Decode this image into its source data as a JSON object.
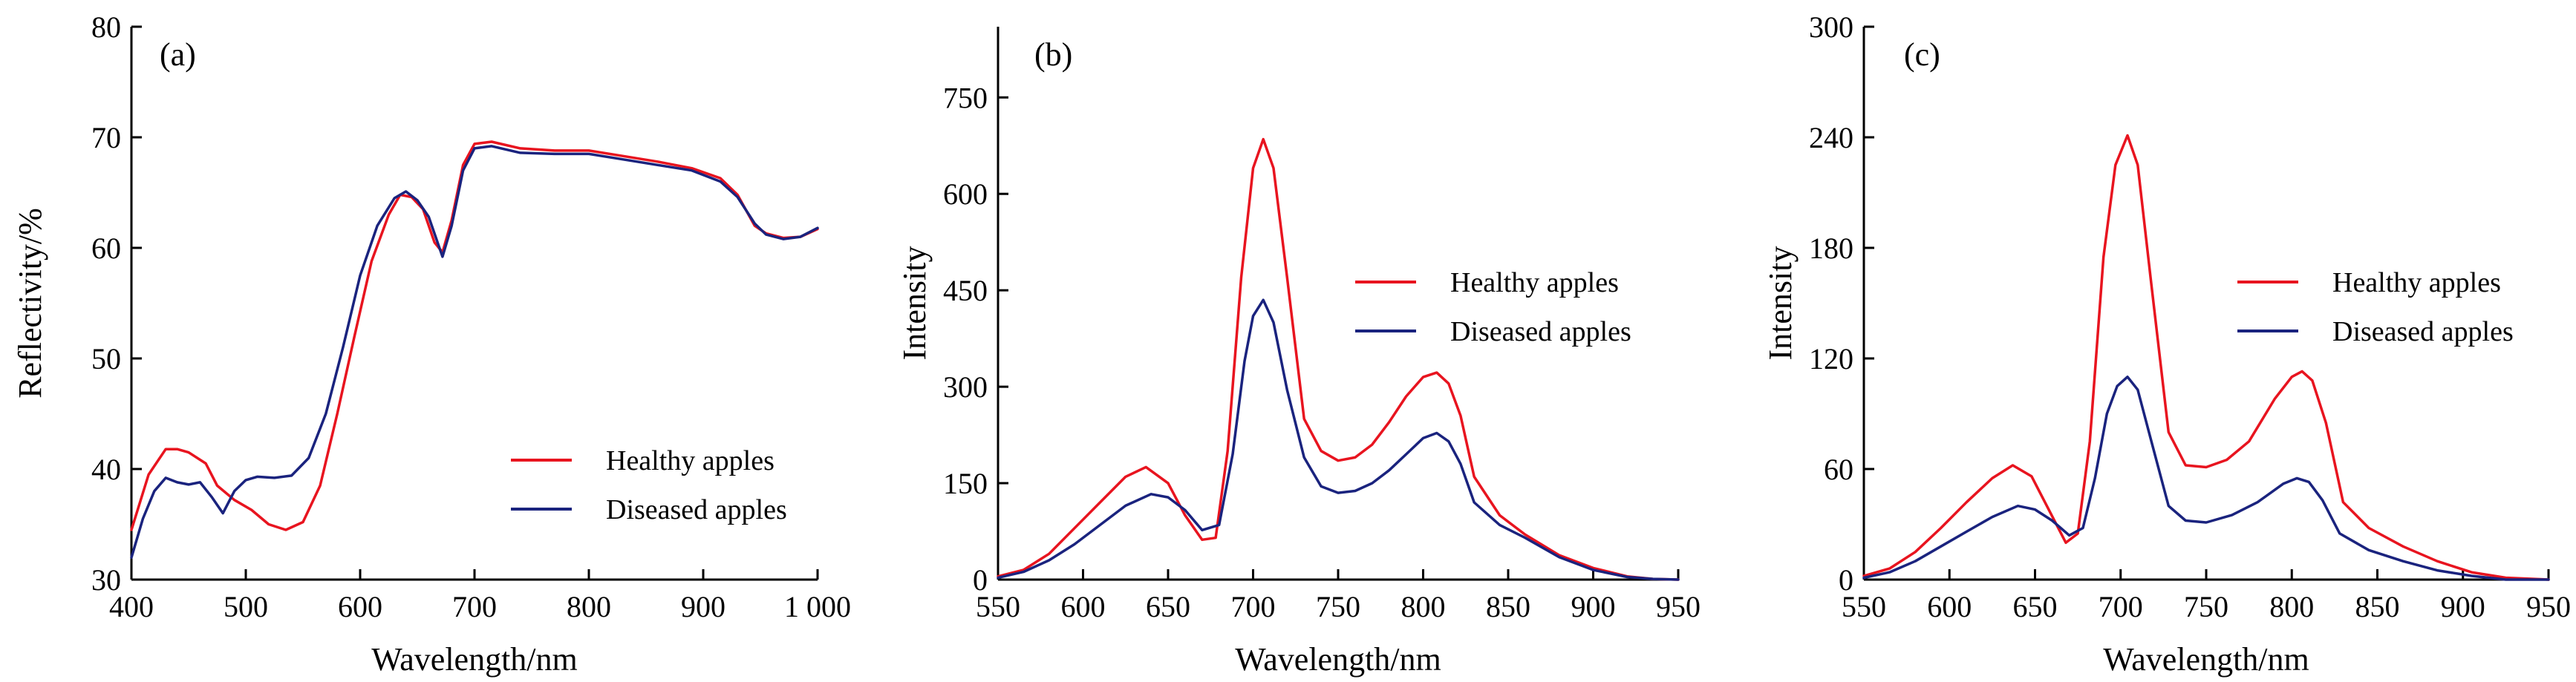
{
  "colors": {
    "healthy": "#e8141f",
    "diseased": "#1a237e",
    "axis": "#000000"
  },
  "chart_data": [
    {
      "type": "line",
      "panel_label": "(a)",
      "xlabel": "Wavelength/nm",
      "ylabel": "Reflectivity/%",
      "xlim": [
        400,
        1000
      ],
      "ylim": [
        30,
        80
      ],
      "xticks": [
        400,
        500,
        600,
        700,
        800,
        900,
        1000
      ],
      "xtick_labels": [
        "400",
        "500",
        "600",
        "700",
        "800",
        "900",
        "1 000"
      ],
      "yticks": [
        30,
        40,
        50,
        60,
        70,
        80
      ],
      "ytick_labels": [
        "30",
        "40",
        "50",
        "60",
        "70",
        "80"
      ],
      "grid": false,
      "legend_position": "lower-right",
      "series": [
        {
          "name": "Healthy apples",
          "color": "#e8141f",
          "x": [
            400,
            415,
            430,
            440,
            450,
            465,
            475,
            490,
            505,
            520,
            535,
            550,
            565,
            580,
            595,
            610,
            625,
            635,
            645,
            655,
            665,
            672,
            680,
            690,
            700,
            715,
            740,
            770,
            800,
            830,
            860,
            890,
            915,
            930,
            945,
            955,
            970,
            985,
            1000
          ],
          "y": [
            34.5,
            39.5,
            41.8,
            41.8,
            41.5,
            40.5,
            38.5,
            37.2,
            36.3,
            35.0,
            34.5,
            35.2,
            38.5,
            45.0,
            52.0,
            58.8,
            63.0,
            64.8,
            64.6,
            63.5,
            60.5,
            59.6,
            62.5,
            67.5,
            69.4,
            69.6,
            69.0,
            68.8,
            68.8,
            68.3,
            67.8,
            67.2,
            66.3,
            64.8,
            62.0,
            61.3,
            60.9,
            61.0,
            61.7
          ]
        },
        {
          "name": "Diseased apples",
          "color": "#1a237e",
          "x": [
            400,
            410,
            420,
            430,
            440,
            450,
            460,
            470,
            480,
            490,
            500,
            510,
            525,
            540,
            555,
            570,
            585,
            600,
            615,
            630,
            640,
            650,
            660,
            672,
            680,
            690,
            700,
            715,
            740,
            770,
            800,
            830,
            860,
            890,
            915,
            930,
            945,
            955,
            970,
            985,
            1000
          ],
          "y": [
            32.0,
            35.5,
            38.0,
            39.2,
            38.8,
            38.6,
            38.8,
            37.5,
            36.0,
            38.0,
            39.0,
            39.3,
            39.2,
            39.4,
            41.0,
            45.0,
            51.0,
            57.5,
            62.0,
            64.5,
            65.1,
            64.3,
            62.8,
            59.2,
            62.0,
            67.0,
            69.0,
            69.2,
            68.6,
            68.5,
            68.5,
            68.0,
            67.5,
            67.0,
            66.0,
            64.6,
            62.2,
            61.2,
            60.8,
            61.0,
            61.8
          ]
        }
      ]
    },
    {
      "type": "line",
      "panel_label": "(b)",
      "xlabel": "Wavelength/nm",
      "ylabel": "Intensity",
      "xlim": [
        550,
        950
      ],
      "ylim": [
        0,
        860
      ],
      "xticks": [
        550,
        600,
        650,
        700,
        750,
        800,
        850,
        900,
        950
      ],
      "xtick_labels": [
        "550",
        "600",
        "650",
        "700",
        "750",
        "800",
        "850",
        "900",
        "950"
      ],
      "yticks": [
        0,
        150,
        300,
        450,
        600,
        750
      ],
      "ytick_labels": [
        "0",
        "150",
        "300",
        "450",
        "600",
        "750"
      ],
      "grid": false,
      "legend_position": "right",
      "series": [
        {
          "name": "Healthy apples",
          "color": "#e8141f",
          "x": [
            550,
            565,
            580,
            595,
            610,
            625,
            637,
            650,
            660,
            670,
            678,
            685,
            693,
            700,
            706,
            712,
            720,
            730,
            740,
            750,
            760,
            770,
            780,
            790,
            800,
            808,
            815,
            822,
            830,
            845,
            860,
            880,
            900,
            920,
            935,
            950
          ],
          "y": [
            5,
            15,
            40,
            80,
            120,
            160,
            175,
            150,
            100,
            62,
            65,
            200,
            470,
            640,
            685,
            640,
            470,
            250,
            200,
            185,
            190,
            210,
            245,
            285,
            315,
            322,
            305,
            255,
            160,
            100,
            70,
            38,
            18,
            5,
            1,
            0
          ]
        },
        {
          "name": "Diseased apples",
          "color": "#1a237e",
          "x": [
            550,
            565,
            580,
            595,
            610,
            625,
            640,
            650,
            660,
            670,
            680,
            688,
            695,
            700,
            706,
            712,
            720,
            730,
            740,
            750,
            760,
            770,
            780,
            790,
            800,
            808,
            815,
            822,
            830,
            845,
            860,
            880,
            900,
            920,
            935,
            950
          ],
          "y": [
            3,
            12,
            30,
            55,
            85,
            115,
            133,
            128,
            108,
            77,
            85,
            195,
            340,
            410,
            435,
            400,
            295,
            190,
            145,
            135,
            138,
            150,
            170,
            195,
            220,
            228,
            215,
            180,
            120,
            85,
            65,
            35,
            15,
            4,
            1,
            0
          ]
        }
      ]
    },
    {
      "type": "line",
      "panel_label": "(c)",
      "xlabel": "Wavelength/nm",
      "ylabel": "Intensity",
      "xlim": [
        550,
        950
      ],
      "ylim": [
        0,
        300
      ],
      "xticks": [
        550,
        600,
        650,
        700,
        750,
        800,
        850,
        900,
        950
      ],
      "xtick_labels": [
        "550",
        "600",
        "650",
        "700",
        "750",
        "800",
        "850",
        "900",
        "950"
      ],
      "yticks": [
        0,
        60,
        120,
        180,
        240,
        300
      ],
      "ytick_labels": [
        "0",
        "60",
        "120",
        "180",
        "240",
        "300"
      ],
      "grid": false,
      "legend_position": "right",
      "series": [
        {
          "name": "Healthy apples",
          "color": "#e8141f",
          "x": [
            550,
            565,
            580,
            595,
            610,
            625,
            637,
            648,
            658,
            668,
            675,
            682,
            690,
            697,
            704,
            710,
            718,
            728,
            738,
            750,
            762,
            775,
            790,
            800,
            806,
            812,
            820,
            830,
            845,
            865,
            885,
            905,
            925,
            950
          ],
          "y": [
            2,
            6,
            15,
            28,
            42,
            55,
            62,
            56,
            38,
            20,
            25,
            75,
            175,
            225,
            241,
            225,
            160,
            80,
            62,
            61,
            65,
            75,
            98,
            110,
            113,
            108,
            85,
            42,
            28,
            18,
            10,
            4,
            1,
            0
          ]
        },
        {
          "name": "Diseased apples",
          "color": "#1a237e",
          "x": [
            550,
            565,
            580,
            595,
            610,
            625,
            640,
            650,
            660,
            670,
            678,
            685,
            692,
            698,
            704,
            710,
            718,
            728,
            738,
            750,
            765,
            780,
            795,
            803,
            810,
            818,
            828,
            845,
            865,
            885,
            905,
            925,
            950
          ],
          "y": [
            1,
            4,
            10,
            18,
            26,
            34,
            40,
            38,
            32,
            24,
            28,
            55,
            90,
            105,
            110,
            103,
            75,
            40,
            32,
            31,
            35,
            42,
            52,
            55,
            53,
            43,
            25,
            16,
            10,
            5,
            2,
            0,
            0
          ]
        }
      ]
    }
  ]
}
